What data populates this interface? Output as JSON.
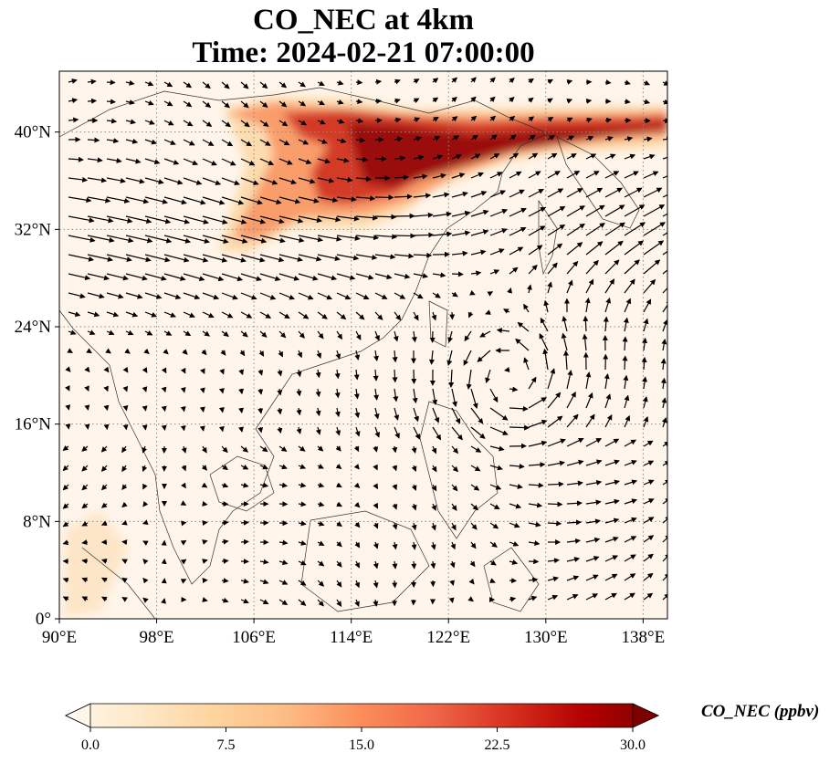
{
  "map": {
    "title_line1": "CO_NEC at 4km",
    "title_line2": "Time: 2024-02-21 07:00:00",
    "lon_ticks": [
      "90°E",
      "98°E",
      "106°E",
      "114°E",
      "122°E",
      "130°E",
      "138°E"
    ],
    "lat_ticks": [
      "0°",
      "8°N",
      "16°N",
      "24°N",
      "32°N",
      "40°N"
    ],
    "lon_range": [
      90,
      140
    ],
    "lat_range": [
      0,
      45
    ],
    "colormap": "OrRd",
    "gridlines": true
  },
  "colorbar": {
    "label": "CO_NEC (ppbv)",
    "ticks": [
      "0.0",
      "7.5",
      "15.0",
      "22.5",
      "30.0"
    ],
    "range": [
      0,
      30
    ],
    "extend": "both",
    "colors": [
      "#fff7ec",
      "#fee8c8",
      "#fdd49e",
      "#fdbb84",
      "#fc8d59",
      "#ef6548",
      "#d7301f",
      "#b30000",
      "#7f0000"
    ]
  }
}
